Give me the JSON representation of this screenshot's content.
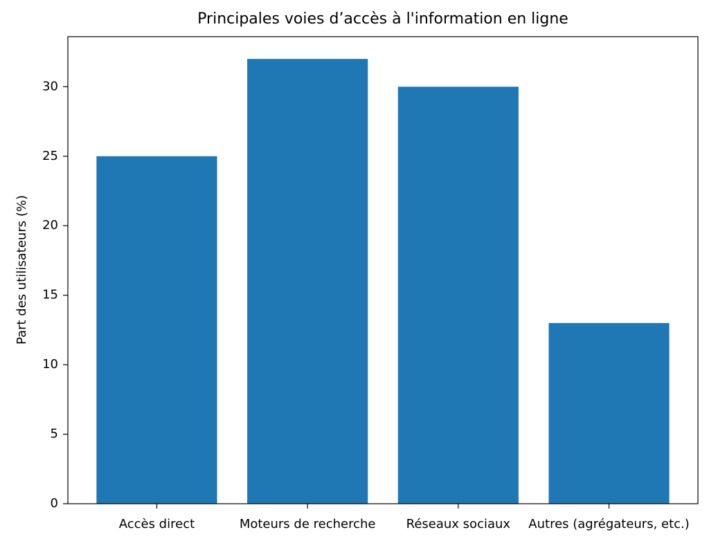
{
  "chart_data": {
    "type": "bar",
    "title": "Principales voies d’accès à l'information en ligne",
    "y_label": "Part des utilisateurs (%)",
    "categories": [
      "Accès direct",
      "Moteurs de recherche",
      "Réseaux sociaux",
      "Autres (agrégateurs, etc.)"
    ],
    "values": [
      25,
      32,
      30,
      13
    ],
    "color": "#1f77b4",
    "ylim": [
      0,
      33.6
    ],
    "yticks": [
      0,
      5,
      10,
      15,
      20,
      25,
      30
    ],
    "grid": false
  }
}
